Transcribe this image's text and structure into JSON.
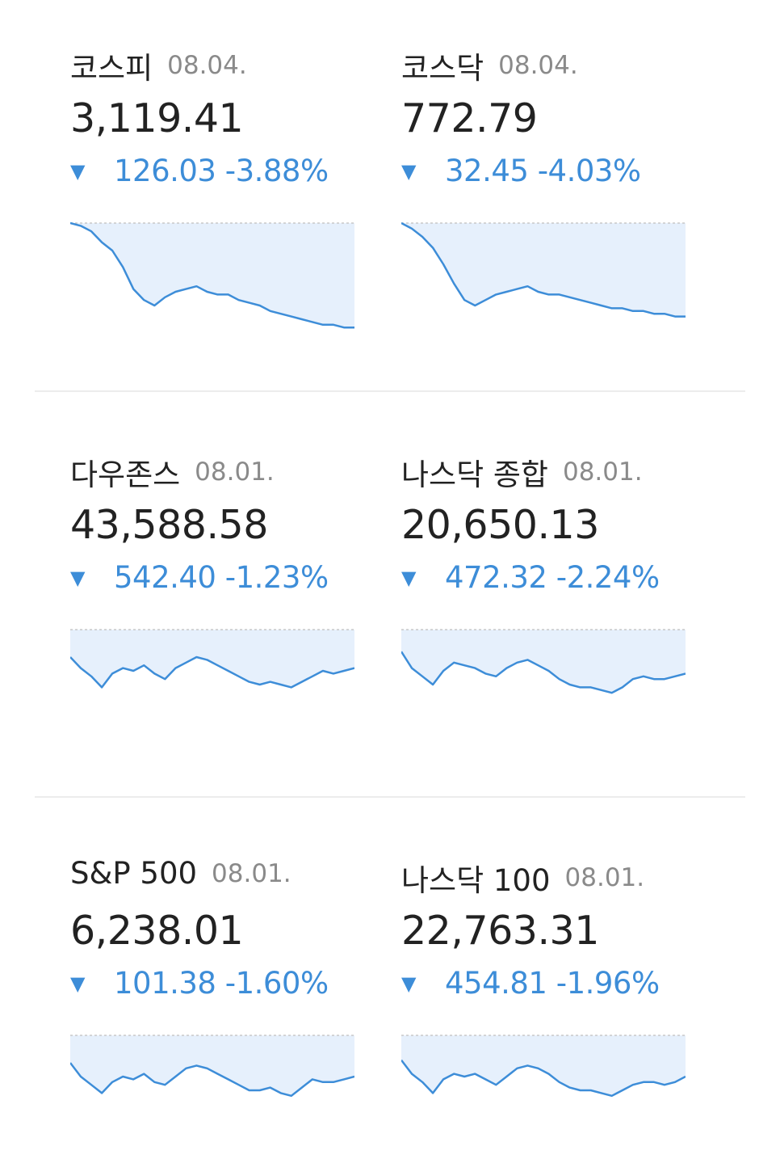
{
  "colors": {
    "accent_down": "#3d8dd8",
    "chart_fill": "#e6f0fc",
    "baseline": "#c8c8c8",
    "divider": "#ececec"
  },
  "icons": {
    "down": "triangle-down-icon"
  },
  "indices": [
    {
      "name": "코스피",
      "date": "08.04.",
      "value": "3,119.41",
      "change": "126.03",
      "percent": "-3.88%",
      "arrow": "▼"
    },
    {
      "name": "코스닥",
      "date": "08.04.",
      "value": "772.79",
      "change": "32.45",
      "percent": "-4.03%",
      "arrow": "▼"
    },
    {
      "name": "다우존스",
      "date": "08.01.",
      "value": "43,588.58",
      "change": "542.40",
      "percent": "-1.23%",
      "arrow": "▼"
    },
    {
      "name": "나스닥 종합",
      "date": "08.01.",
      "value": "20,650.13",
      "change": "472.32",
      "percent": "-2.24%",
      "arrow": "▼"
    },
    {
      "name": "S&P 500",
      "date": "08.01.",
      "value": "6,238.01",
      "change": "101.38",
      "percent": "-1.60%",
      "arrow": "▼"
    },
    {
      "name": "나스닥 100",
      "date": "08.01.",
      "value": "22,763.31",
      "change": "454.81",
      "percent": "-1.96%",
      "arrow": "▼"
    }
  ],
  "chart_data": [
    {
      "type": "area",
      "series": [
        {
          "values": [
            1.0,
            0.99,
            0.97,
            0.93,
            0.9,
            0.84,
            0.76,
            0.72,
            0.7,
            0.73,
            0.75,
            0.76,
            0.77,
            0.75,
            0.74,
            0.74,
            0.72,
            0.71,
            0.7,
            0.68,
            0.67,
            0.66,
            0.65,
            0.64,
            0.63,
            0.63,
            0.62,
            0.62
          ]
        }
      ]
    },
    {
      "type": "area",
      "series": [
        {
          "values": [
            1.0,
            0.98,
            0.95,
            0.91,
            0.85,
            0.78,
            0.72,
            0.7,
            0.72,
            0.74,
            0.75,
            0.76,
            0.77,
            0.75,
            0.74,
            0.74,
            0.73,
            0.72,
            0.71,
            0.7,
            0.69,
            0.69,
            0.68,
            0.68,
            0.67,
            0.67,
            0.66,
            0.66
          ]
        }
      ]
    },
    {
      "type": "area",
      "series": [
        {
          "values": [
            0.9,
            0.86,
            0.83,
            0.79,
            0.84,
            0.86,
            0.85,
            0.87,
            0.84,
            0.82,
            0.86,
            0.88,
            0.9,
            0.89,
            0.87,
            0.85,
            0.83,
            0.81,
            0.8,
            0.81,
            0.8,
            0.79,
            0.81,
            0.83,
            0.85,
            0.84,
            0.85,
            0.86
          ]
        }
      ]
    },
    {
      "type": "area",
      "series": [
        {
          "values": [
            0.92,
            0.86,
            0.83,
            0.8,
            0.85,
            0.88,
            0.87,
            0.86,
            0.84,
            0.83,
            0.86,
            0.88,
            0.89,
            0.87,
            0.85,
            0.82,
            0.8,
            0.79,
            0.79,
            0.78,
            0.77,
            0.79,
            0.82,
            0.83,
            0.82,
            0.82,
            0.83,
            0.84
          ]
        }
      ]
    },
    {
      "type": "area",
      "series": [
        {
          "values": [
            0.9,
            0.85,
            0.82,
            0.79,
            0.83,
            0.85,
            0.84,
            0.86,
            0.83,
            0.82,
            0.85,
            0.88,
            0.89,
            0.88,
            0.86,
            0.84,
            0.82,
            0.8,
            0.8,
            0.81,
            0.79,
            0.78,
            0.81,
            0.84,
            0.83,
            0.83,
            0.84,
            0.85
          ]
        }
      ]
    },
    {
      "type": "area",
      "series": [
        {
          "values": [
            0.91,
            0.86,
            0.83,
            0.79,
            0.84,
            0.86,
            0.85,
            0.86,
            0.84,
            0.82,
            0.85,
            0.88,
            0.89,
            0.88,
            0.86,
            0.83,
            0.81,
            0.8,
            0.8,
            0.79,
            0.78,
            0.8,
            0.82,
            0.83,
            0.83,
            0.82,
            0.83,
            0.85
          ]
        }
      ]
    }
  ]
}
